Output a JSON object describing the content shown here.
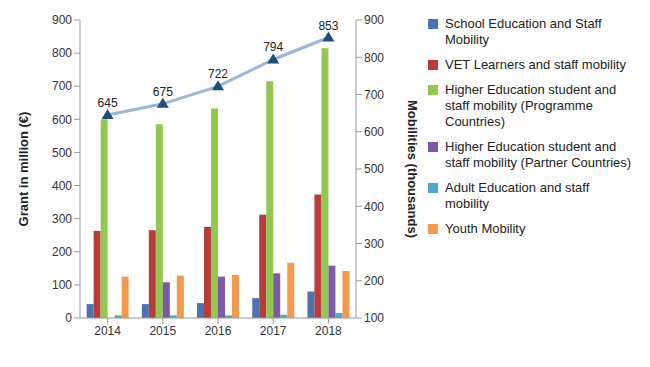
{
  "chart_data": {
    "type": "bar",
    "categories": [
      "2014",
      "2015",
      "2016",
      "2017",
      "2018"
    ],
    "series": [
      {
        "name": "School Education and Staff Mobility",
        "type": "bar",
        "color": "#4a74b0",
        "values": [
          42,
          42,
          45,
          60,
          80
        ]
      },
      {
        "name": "VET Learners and staff mobility",
        "type": "bar",
        "color": "#b83c3a",
        "values": [
          263,
          265,
          275,
          312,
          373
        ]
      },
      {
        "name": "Higher Education student and staff mobility (Programme Countries)",
        "type": "bar",
        "color": "#92c84f",
        "values": [
          600,
          585,
          633,
          715,
          815
        ]
      },
      {
        "name": "Higher Education student and staff mobility (Partner Countries)",
        "type": "bar",
        "color": "#7b5ba6",
        "values": [
          0,
          108,
          125,
          135,
          158
        ]
      },
      {
        "name": "Adult Education and staff mobility",
        "type": "bar",
        "color": "#4bacc6",
        "values": [
          8,
          8,
          8,
          10,
          15
        ]
      },
      {
        "name": "Youth Mobility",
        "type": "bar",
        "color": "#f59a4c",
        "values": [
          125,
          128,
          130,
          167,
          142
        ]
      },
      {
        "type": "line",
        "axis": "y2",
        "color": "#9ab6d9",
        "marker": "triangle",
        "data_labels": true,
        "values": [
          645,
          675,
          722,
          794,
          853
        ]
      }
    ],
    "y_label": "Grant in million (€)",
    "y2_label": "Mobilities (thousands)",
    "ylim": [
      0,
      900
    ],
    "yticks": [
      0,
      100,
      200,
      300,
      400,
      500,
      600,
      700,
      800,
      900
    ],
    "y2lim": [
      100,
      900
    ],
    "y2ticks": [
      100,
      200,
      300,
      400,
      500,
      600,
      700,
      800,
      900
    ],
    "grid": false,
    "legend": "right"
  }
}
